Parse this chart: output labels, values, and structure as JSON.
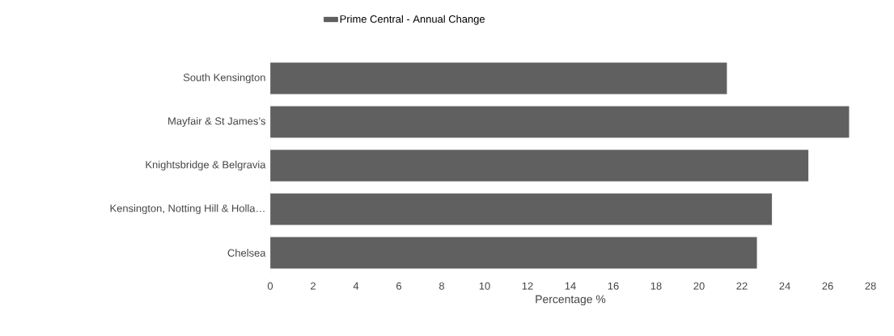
{
  "chart_data": {
    "type": "bar",
    "orientation": "horizontal",
    "xlabel": "Percentage %",
    "categories": [
      "South Kensington",
      "Mayfair & St James’s",
      "Knightsbridge & Belgravia",
      "Kensington, Notting Hill & Holla…",
      "Chelsea"
    ],
    "series": [
      {
        "name": "Prime Central - Annual Change",
        "color": "#606060",
        "values": [
          21.3,
          27.0,
          25.1,
          23.4,
          22.7
        ]
      }
    ],
    "xlim": [
      0,
      28
    ],
    "xticks": [
      0,
      2,
      4,
      6,
      8,
      10,
      12,
      14,
      16,
      18,
      20,
      22,
      24,
      26,
      28
    ],
    "legend": "top"
  }
}
